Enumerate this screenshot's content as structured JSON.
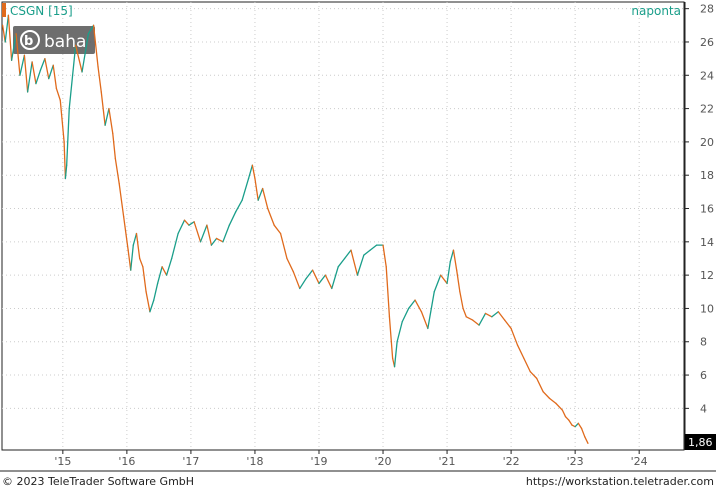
{
  "header": {
    "title": "CSGN [15]",
    "interval": "naponta"
  },
  "watermark": {
    "text": "baha"
  },
  "footer": {
    "copyright": "© 2023 TeleTrader Software GmbH",
    "url": "https://workstation.teletrader.com"
  },
  "colors": {
    "up": "#1a9e8a",
    "down": "#e06a1c",
    "grid": "#cccccc",
    "last_price_bg": "#000000"
  },
  "chart_data": {
    "type": "line",
    "ylim": [
      1.5,
      28.4
    ],
    "xlim": [
      2014.05,
      2024.7
    ],
    "y_ticks": [
      4,
      6,
      8,
      10,
      12,
      14,
      16,
      18,
      20,
      22,
      24,
      26,
      28
    ],
    "x_ticks": [
      {
        "label": "'15",
        "x": 2015.0
      },
      {
        "label": "'16",
        "x": 2016.0
      },
      {
        "label": "'17",
        "x": 2017.0
      },
      {
        "label": "'18",
        "x": 2018.0
      },
      {
        "label": "'19",
        "x": 2019.0
      },
      {
        "label": "'20",
        "x": 2020.0
      },
      {
        "label": "'21",
        "x": 2021.0
      },
      {
        "label": "'22",
        "x": 2022.0
      },
      {
        "label": "'23",
        "x": 2023.0
      },
      {
        "label": "'24",
        "x": 2024.0
      }
    ],
    "last_price": "1,86",
    "grid": true,
    "series": [
      {
        "x": [
          2014.06,
          2014.1,
          2014.15,
          2014.2,
          2014.27,
          2014.33,
          2014.4,
          2014.45,
          2014.52,
          2014.58,
          2014.65,
          2014.72,
          2014.78,
          2014.85,
          2014.9,
          2014.96,
          2015.02,
          2015.04,
          2015.06,
          2015.1,
          2015.2,
          2015.3,
          2015.4,
          2015.48,
          2015.55,
          2015.6,
          2015.66,
          2015.72,
          2015.78,
          2015.82,
          2015.88,
          2015.95,
          2016.02,
          2016.06,
          2016.1,
          2016.15,
          2016.2,
          2016.25,
          2016.3,
          2016.36,
          2016.42,
          2016.48,
          2016.55,
          2016.62,
          2016.7,
          2016.8,
          2016.9,
          2016.97,
          2017.05,
          2017.15,
          2017.25,
          2017.32,
          2017.4,
          2017.5,
          2017.6,
          2017.7,
          2017.8,
          2017.9,
          2017.96,
          2018.0,
          2018.05,
          2018.12,
          2018.2,
          2018.3,
          2018.4,
          2018.5,
          2018.6,
          2018.7,
          2018.8,
          2018.9,
          2019.0,
          2019.1,
          2019.2,
          2019.3,
          2019.4,
          2019.5,
          2019.6,
          2019.7,
          2019.8,
          2019.9,
          2020.0,
          2020.05,
          2020.1,
          2020.15,
          2020.18,
          2020.22,
          2020.3,
          2020.4,
          2020.5,
          2020.6,
          2020.7,
          2020.8,
          2020.9,
          2021.0,
          2021.05,
          2021.1,
          2021.15,
          2021.2,
          2021.25,
          2021.3,
          2021.4,
          2021.5,
          2021.6,
          2021.7,
          2021.8,
          2021.9,
          2022.0,
          2022.1,
          2022.2,
          2022.3,
          2022.4,
          2022.5,
          2022.6,
          2022.7,
          2022.8,
          2022.85,
          2022.9,
          2022.95,
          2023.0,
          2023.05,
          2023.1,
          2023.15,
          2023.2
        ],
        "y": [
          27.0,
          26.0,
          27.6,
          24.9,
          26.5,
          24.0,
          25.2,
          23.0,
          24.8,
          23.5,
          24.3,
          25.0,
          23.8,
          24.6,
          23.2,
          22.5,
          20.0,
          17.8,
          18.6,
          22.0,
          25.8,
          24.2,
          26.5,
          27.0,
          24.5,
          23.0,
          21.0,
          22.0,
          20.5,
          19.0,
          17.5,
          15.5,
          13.5,
          12.3,
          13.8,
          14.5,
          13.0,
          12.5,
          11.0,
          9.8,
          10.5,
          11.5,
          12.5,
          12.0,
          13.0,
          14.5,
          15.3,
          15.0,
          15.2,
          14.0,
          15.0,
          13.8,
          14.2,
          14.0,
          15.0,
          15.8,
          16.5,
          17.8,
          18.6,
          17.8,
          16.5,
          17.2,
          16.0,
          15.0,
          14.5,
          13.0,
          12.2,
          11.2,
          11.8,
          12.3,
          11.5,
          12.0,
          11.2,
          12.5,
          13.0,
          13.5,
          12.0,
          13.2,
          13.5,
          13.8,
          13.8,
          12.5,
          9.5,
          7.0,
          6.5,
          8.0,
          9.2,
          10.0,
          10.5,
          9.8,
          8.8,
          11.0,
          12.0,
          11.5,
          12.8,
          13.5,
          12.3,
          11.0,
          10.0,
          9.5,
          9.3,
          9.0,
          9.7,
          9.5,
          9.8,
          9.3,
          8.8,
          7.8,
          7.0,
          6.2,
          5.8,
          5.0,
          4.6,
          4.3,
          3.9,
          3.5,
          3.3,
          3.0,
          2.9,
          3.1,
          2.8,
          2.3,
          1.9
        ]
      }
    ]
  }
}
